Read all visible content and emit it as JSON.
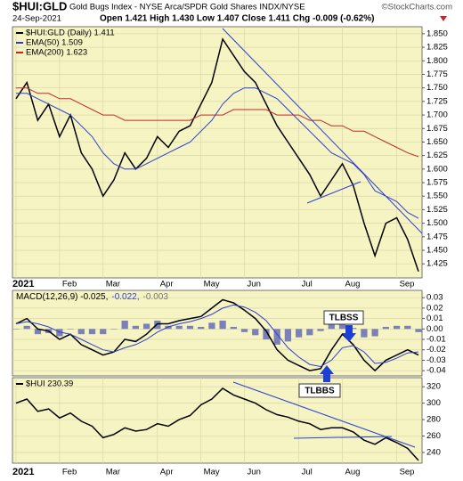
{
  "header": {
    "symbol": "$HUI:GLD",
    "description": "Gold Bugs Index - NYSE Arca/SPDR Gold Shares INDX/NYSE",
    "credit": "©StockCharts.com",
    "date": "24-Sep-2021",
    "quote": "Open 1.421  High 1.430  Low 1.407  Close 1.411  Chg -0.009 (-0.62%)"
  },
  "chart_data": [
    {
      "type": "line",
      "categories": [
        "2021",
        null,
        null,
        null,
        "Feb",
        null,
        null,
        null,
        "Mar",
        null,
        null,
        null,
        null,
        "Apr",
        null,
        null,
        null,
        "May",
        null,
        null,
        null,
        "Jun",
        null,
        null,
        null,
        null,
        "Jul",
        null,
        null,
        null,
        "Aug",
        null,
        null,
        null,
        null,
        "Sep",
        null,
        null
      ],
      "series": [
        {
          "name": "$HUI:GLD (Daily) 1.411",
          "color": "#000000",
          "values": [
            1.73,
            1.76,
            1.69,
            1.72,
            1.66,
            1.7,
            1.63,
            1.6,
            1.55,
            1.58,
            1.63,
            1.6,
            1.62,
            1.66,
            1.64,
            1.67,
            1.68,
            1.72,
            1.76,
            1.84,
            1.81,
            1.78,
            1.76,
            1.72,
            1.68,
            1.65,
            1.62,
            1.59,
            1.55,
            1.58,
            1.61,
            1.57,
            1.5,
            1.44,
            1.5,
            1.51,
            1.47,
            1.411
          ]
        },
        {
          "name": "EMA(50) 1.509",
          "color": "#2a3fd0",
          "values": [
            1.74,
            1.74,
            1.73,
            1.72,
            1.71,
            1.7,
            1.68,
            1.66,
            1.63,
            1.61,
            1.6,
            1.6,
            1.61,
            1.62,
            1.63,
            1.64,
            1.65,
            1.67,
            1.69,
            1.72,
            1.74,
            1.75,
            1.75,
            1.74,
            1.73,
            1.71,
            1.69,
            1.67,
            1.65,
            1.63,
            1.62,
            1.61,
            1.59,
            1.56,
            1.55,
            1.54,
            1.52,
            1.509
          ]
        },
        {
          "name": "EMA(200) 1.623",
          "color": "#c0282d",
          "values": [
            1.75,
            1.75,
            1.74,
            1.74,
            1.73,
            1.73,
            1.72,
            1.71,
            1.7,
            1.7,
            1.69,
            1.69,
            1.69,
            1.69,
            1.69,
            1.69,
            1.69,
            1.7,
            1.7,
            1.7,
            1.71,
            1.71,
            1.71,
            1.71,
            1.7,
            1.7,
            1.7,
            1.69,
            1.69,
            1.68,
            1.68,
            1.67,
            1.67,
            1.66,
            1.65,
            1.64,
            1.63,
            1.623
          ]
        }
      ],
      "ylim": [
        1.399,
        1.863
      ],
      "yticks": [
        1.425,
        {
          "value": 1.45,
          "label": "1.450"
        },
        1.475,
        {
          "value": 1.5,
          "label": "1.500"
        },
        1.525,
        {
          "value": 1.55,
          "label": "1.550"
        },
        1.575,
        {
          "value": 1.6,
          "label": "1.600"
        },
        1.625,
        {
          "value": 1.65,
          "label": "1.650"
        },
        1.675,
        {
          "value": 1.7,
          "label": "1.700"
        },
        1.725,
        {
          "value": 1.75,
          "label": "1.750"
        },
        1.775,
        {
          "value": 1.8,
          "label": "1.800"
        },
        1.825,
        {
          "value": 1.85,
          "label": "1.850"
        }
      ],
      "grid": true
    },
    {
      "type": "line",
      "legend": [
        "MACD(12,26,9) -0.025,",
        "-0.022,",
        "-0.003"
      ],
      "annotations": [
        "TLBSS",
        "TLBBS"
      ],
      "series": [
        {
          "name": "MACD",
          "color": "#000000",
          "values": [
            0.005,
            0.01,
            0.0,
            -0.002,
            -0.01,
            -0.005,
            -0.015,
            -0.02,
            -0.025,
            -0.022,
            -0.01,
            -0.012,
            -0.005,
            0.005,
            0.005,
            0.008,
            0.01,
            0.012,
            0.02,
            0.028,
            0.025,
            0.018,
            0.01,
            -0.002,
            -0.02,
            -0.03,
            -0.035,
            -0.04,
            -0.038,
            -0.02,
            -0.005,
            -0.015,
            -0.03,
            -0.04,
            -0.03,
            -0.025,
            -0.02,
            -0.025
          ]
        },
        {
          "name": "Signal",
          "color": "#2a3fd0",
          "values": [
            0.005,
            0.007,
            0.005,
            0.002,
            -0.003,
            -0.005,
            -0.01,
            -0.015,
            -0.02,
            -0.022,
            -0.018,
            -0.015,
            -0.01,
            -0.003,
            0.002,
            0.005,
            0.007,
            0.01,
            0.014,
            0.02,
            0.023,
            0.021,
            0.016,
            0.008,
            -0.005,
            -0.018,
            -0.027,
            -0.034,
            -0.036,
            -0.03,
            -0.018,
            -0.016,
            -0.022,
            -0.033,
            -0.032,
            -0.028,
            -0.023,
            -0.022
          ]
        },
        {
          "name": "Histogram",
          "type": "bar",
          "color": "#7b80b8",
          "values": [
            0.0,
            0.003,
            -0.005,
            -0.004,
            -0.007,
            0.0,
            -0.005,
            -0.005,
            -0.005,
            0.0,
            0.008,
            0.003,
            0.005,
            0.008,
            0.003,
            0.003,
            0.003,
            0.002,
            0.006,
            0.008,
            0.002,
            -0.003,
            -0.006,
            -0.01,
            -0.015,
            -0.012,
            -0.008,
            -0.006,
            -0.002,
            0.01,
            0.013,
            0.001,
            -0.008,
            -0.007,
            0.002,
            0.003,
            0.003,
            -0.003
          ]
        }
      ],
      "ylim": [
        -0.045,
        0.037
      ],
      "yticks": [
        -0.04,
        -0.03,
        -0.02,
        -0.01,
        {
          "value": 0,
          "label": "0.00"
        },
        0.01,
        0.02,
        0.03
      ],
      "grid": true
    },
    {
      "type": "line",
      "categories": [
        "2021",
        null,
        null,
        null,
        "Feb",
        null,
        null,
        null,
        "Mar",
        null,
        null,
        null,
        null,
        "Apr",
        null,
        null,
        null,
        "May",
        null,
        null,
        null,
        "Jun",
        null,
        null,
        null,
        null,
        "Jul",
        null,
        null,
        null,
        "Aug",
        null,
        null,
        null,
        null,
        "Sep",
        null,
        null
      ],
      "series": [
        {
          "name": "$HUI 230.39",
          "color": "#000000",
          "values": [
            300,
            305,
            290,
            293,
            282,
            288,
            278,
            272,
            258,
            262,
            270,
            266,
            268,
            275,
            272,
            280,
            285,
            298,
            305,
            318,
            310,
            305,
            300,
            292,
            286,
            283,
            278,
            275,
            268,
            270,
            270,
            265,
            255,
            250,
            258,
            252,
            245,
            230.39
          ]
        }
      ],
      "ylim": [
        227,
        331
      ],
      "yticks": [
        240,
        260,
        280,
        300,
        320
      ],
      "grid": true
    }
  ]
}
